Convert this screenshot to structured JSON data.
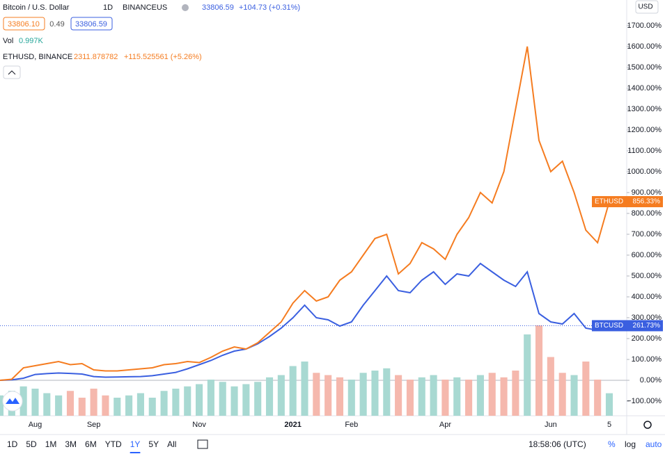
{
  "header": {
    "symbol": "Bitcoin / U.S. Dollar",
    "interval": "1D",
    "exchange": "BINANCEUS",
    "price": "33806.59",
    "change": "+104.73 (+0.31%)",
    "bid": "33806.10",
    "spread": "0.49",
    "ask": "33806.59",
    "vol_label": "Vol",
    "vol_value": "0.997K",
    "compare_symbol": "ETHUSD, BINANCE",
    "compare_price": "2311.878782",
    "compare_change": "+115.525561 (+5.26%)",
    "currency": "USD"
  },
  "toolbar": {
    "ranges": [
      "1D",
      "5D",
      "1M",
      "3M",
      "6M",
      "YTD",
      "1Y",
      "5Y",
      "All"
    ],
    "active": "1Y",
    "time": "18:58:06 (UTC)",
    "percent": "%",
    "log": "log",
    "auto": "auto"
  },
  "chart_data": {
    "type": "line",
    "categories": [
      null,
      null,
      null,
      "Aug",
      null,
      null,
      null,
      null,
      "Sep",
      null,
      null,
      null,
      null,
      null,
      null,
      null,
      null,
      "Nov",
      null,
      null,
      null,
      null,
      null,
      null,
      null,
      "2021",
      null,
      null,
      null,
      null,
      "Feb",
      null,
      null,
      null,
      null,
      null,
      null,
      null,
      "Apr",
      null,
      null,
      null,
      null,
      null,
      null,
      null,
      null,
      "Jun",
      null,
      null,
      null,
      null,
      "5"
    ],
    "series": [
      {
        "name": "BTCUSD",
        "color": "#3a5fe0",
        "last_label": "261.73%",
        "values": [
          0,
          2,
          10,
          28,
          32,
          35,
          33,
          30,
          18,
          15,
          16,
          17,
          18,
          22,
          30,
          38,
          55,
          75,
          95,
          120,
          140,
          150,
          175,
          210,
          250,
          300,
          360,
          300,
          290,
          260,
          280,
          360,
          430,
          500,
          430,
          420,
          480,
          520,
          460,
          510,
          500,
          560,
          520,
          480,
          450,
          520,
          320,
          280,
          270,
          320,
          250,
          240,
          261.73
        ]
      },
      {
        "name": "ETHUSD",
        "color": "#f57c20",
        "last_label": "856.33%",
        "values": [
          0,
          5,
          60,
          70,
          80,
          90,
          75,
          80,
          50,
          45,
          45,
          50,
          55,
          60,
          75,
          80,
          90,
          85,
          110,
          140,
          160,
          150,
          180,
          230,
          280,
          370,
          430,
          380,
          400,
          480,
          520,
          600,
          680,
          700,
          510,
          560,
          660,
          630,
          580,
          700,
          780,
          900,
          850,
          1000,
          1300,
          1600,
          1150,
          1000,
          1050,
          900,
          720,
          660,
          856.33
        ]
      }
    ],
    "volume": [
      0.9,
      1.1,
      1.3,
      1.2,
      1.0,
      0.9,
      1.1,
      0.8,
      1.2,
      0.9,
      0.8,
      0.9,
      1.0,
      0.8,
      1.1,
      1.2,
      1.3,
      1.4,
      1.6,
      1.5,
      1.3,
      1.4,
      1.5,
      1.7,
      1.8,
      2.2,
      2.4,
      1.9,
      1.8,
      1.7,
      1.6,
      1.9,
      2.0,
      2.1,
      1.8,
      1.6,
      1.7,
      1.8,
      1.6,
      1.7,
      1.6,
      1.8,
      1.9,
      1.7,
      2.0,
      3.6,
      4.0,
      2.6,
      1.9,
      1.8,
      2.4,
      1.6,
      0.997
    ],
    "ylim": [
      -170,
      1823
    ],
    "yticks": [
      {
        "value": -100,
        "label": "−100.00%"
      },
      {
        "value": 0,
        "label": "0.00%"
      },
      {
        "value": 100,
        "label": "100.00%"
      },
      {
        "value": 200,
        "label": "200.00%"
      },
      {
        "value": 300,
        "label": "300.00%"
      },
      {
        "value": 400,
        "label": "400.00%"
      },
      {
        "value": 500,
        "label": "500.00%"
      },
      {
        "value": 600,
        "label": "600.00%"
      },
      {
        "value": 700,
        "label": "700.00%"
      },
      {
        "value": 800,
        "label": "800.00%"
      },
      {
        "value": 900,
        "label": "900.00%"
      },
      {
        "value": 1000,
        "label": "1000.00%"
      },
      {
        "value": 1100,
        "label": "1100.00%"
      },
      {
        "value": 1200,
        "label": "1200.00%"
      },
      {
        "value": 1300,
        "label": "1300.00%"
      },
      {
        "value": 1400,
        "label": "1400.00%"
      },
      {
        "value": 1500,
        "label": "1500.00%"
      },
      {
        "value": 1600,
        "label": "1600.00%"
      },
      {
        "value": 1700,
        "label": "1700.00%"
      }
    ]
  }
}
